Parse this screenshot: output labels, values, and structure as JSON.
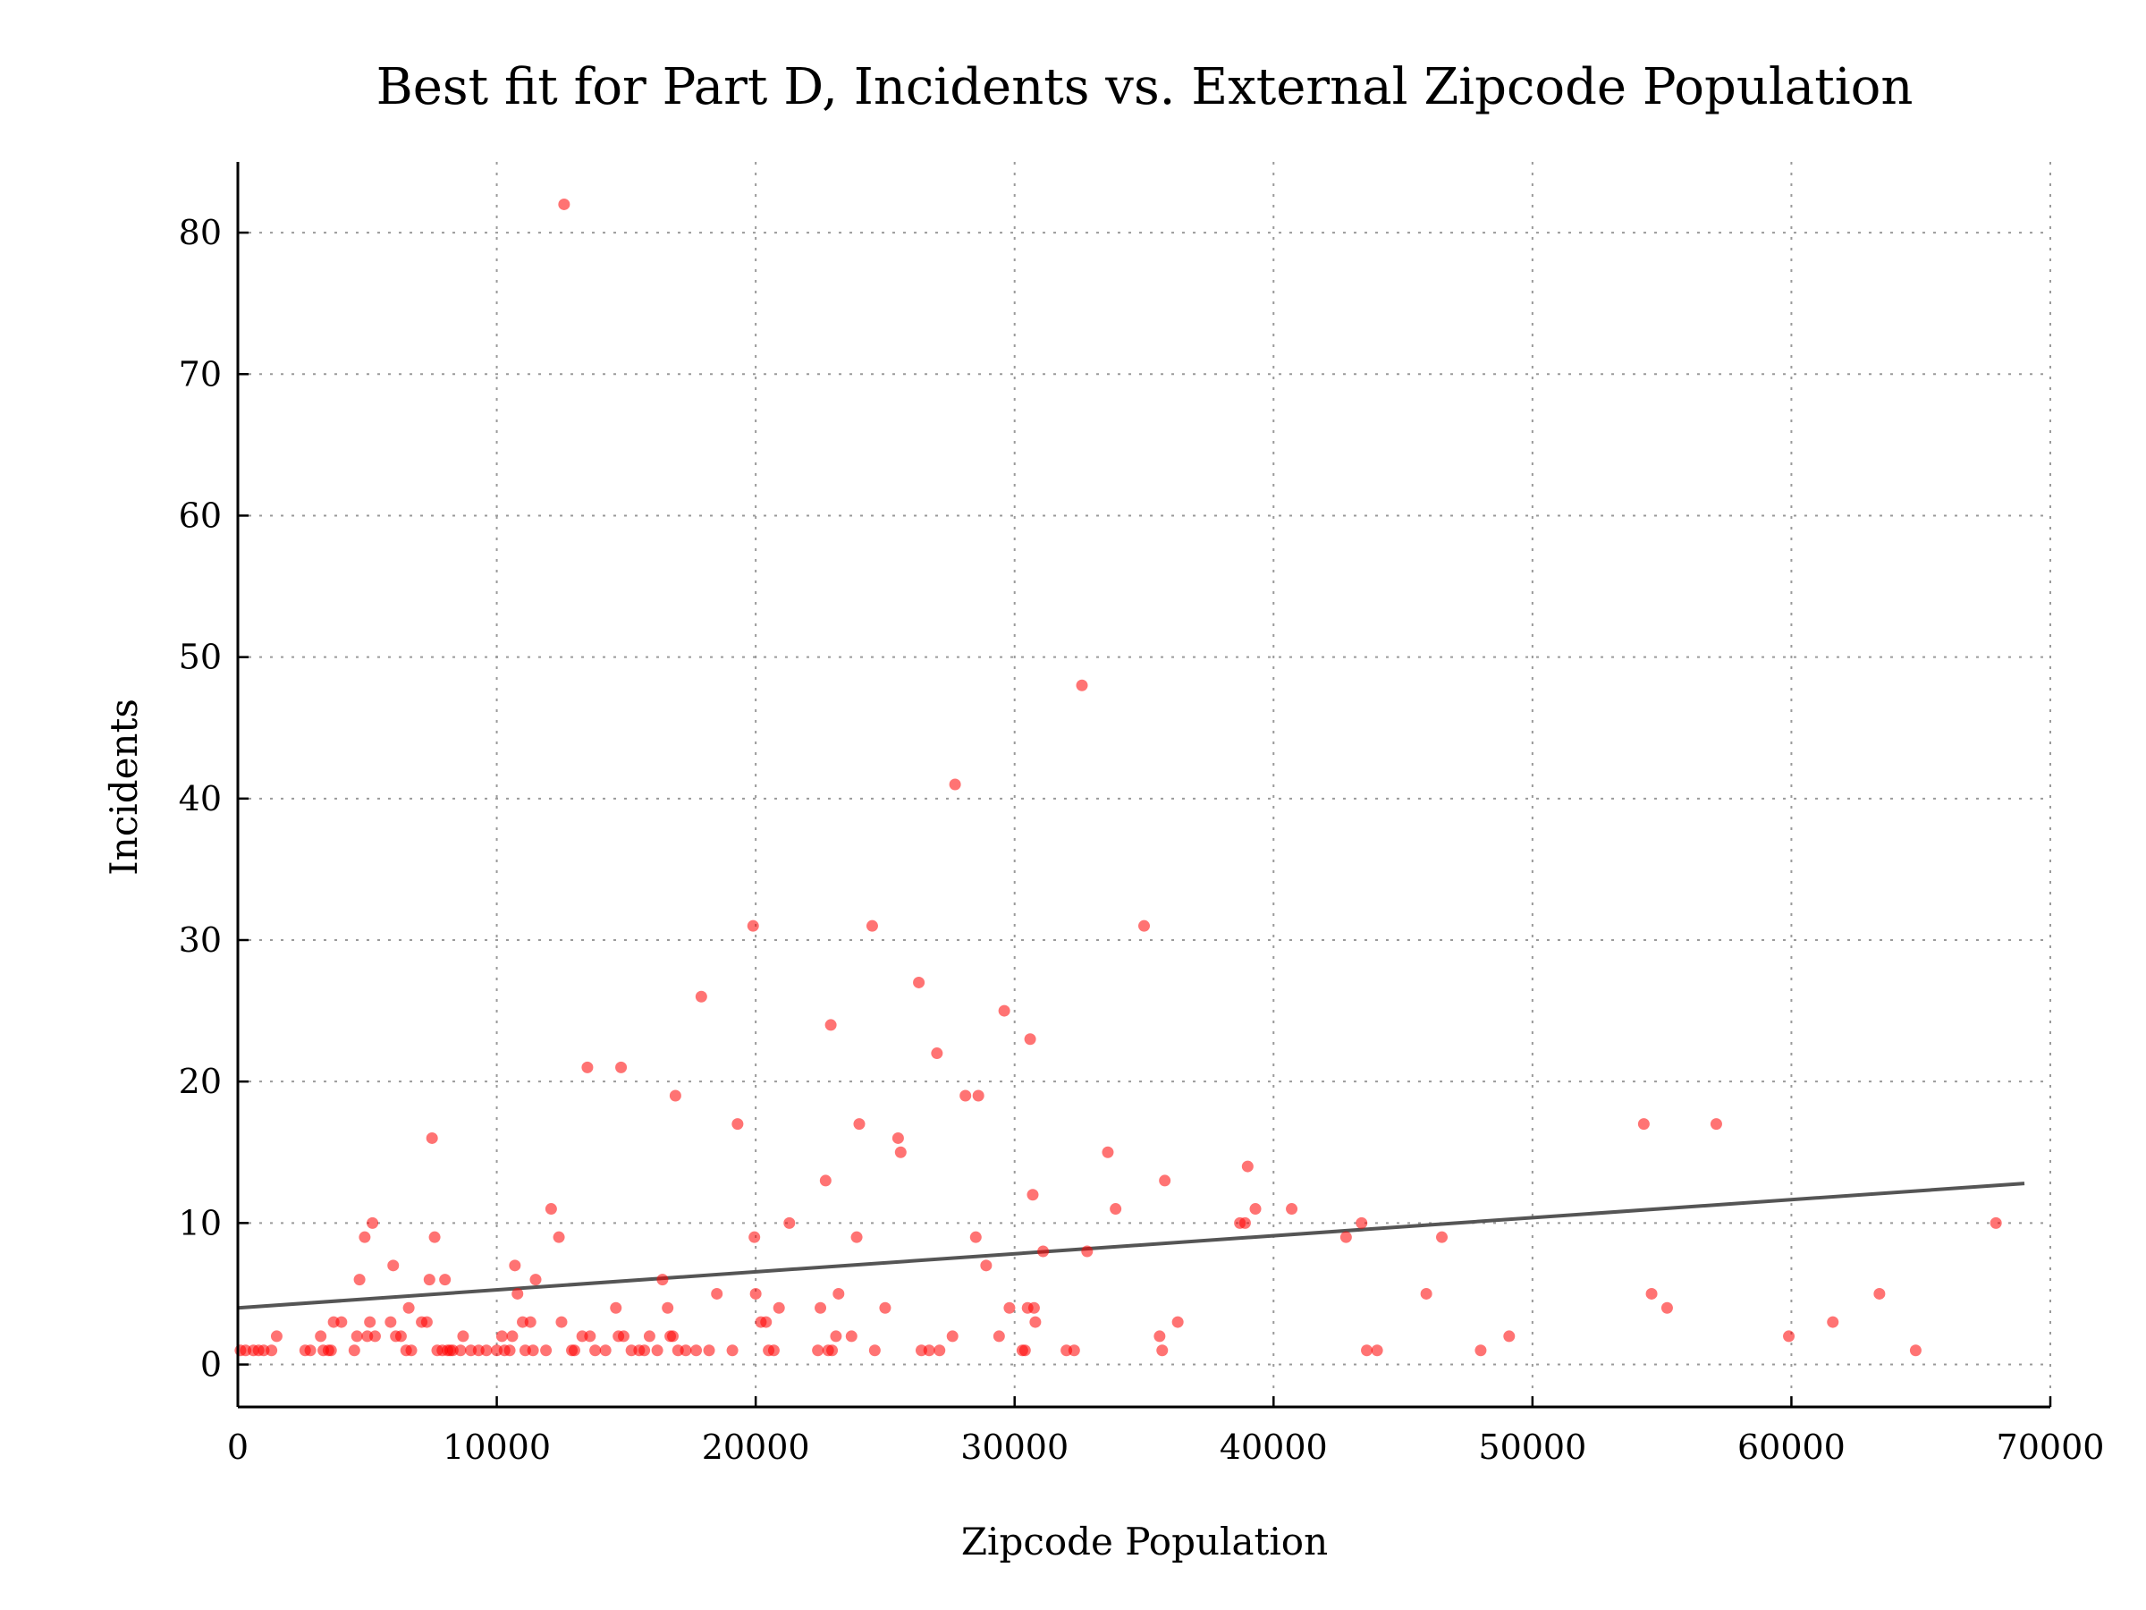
{
  "chart_data": {
    "type": "scatter",
    "title": "Best fit for Part D, Incidents vs. External Zipcode Population",
    "xlabel": "Zipcode Population",
    "ylabel": "Incidents",
    "xlim": [
      0,
      70000
    ],
    "ylim": [
      -3,
      85
    ],
    "xticks": [
      0,
      10000,
      20000,
      30000,
      40000,
      50000,
      60000,
      70000
    ],
    "yticks": [
      0,
      10,
      20,
      30,
      40,
      50,
      60,
      70,
      80
    ],
    "grid": true,
    "point_color": "#ff0000",
    "line_color": "#555555",
    "fit_line": {
      "x": [
        0,
        69000
      ],
      "y": [
        4.0,
        12.8
      ]
    },
    "points": [
      [
        100,
        1
      ],
      [
        300,
        1
      ],
      [
        600,
        1
      ],
      [
        800,
        1
      ],
      [
        1000,
        1
      ],
      [
        1300,
        1
      ],
      [
        1500,
        2
      ],
      [
        2600,
        1
      ],
      [
        2800,
        1
      ],
      [
        3200,
        2
      ],
      [
        3300,
        1
      ],
      [
        3500,
        1
      ],
      [
        3600,
        1
      ],
      [
        3700,
        3
      ],
      [
        4000,
        3
      ],
      [
        4500,
        1
      ],
      [
        4600,
        2
      ],
      [
        4700,
        6
      ],
      [
        4900,
        9
      ],
      [
        5000,
        2
      ],
      [
        5100,
        3
      ],
      [
        5200,
        10
      ],
      [
        5300,
        2
      ],
      [
        5900,
        3
      ],
      [
        6000,
        7
      ],
      [
        6100,
        2
      ],
      [
        6300,
        2
      ],
      [
        6500,
        1
      ],
      [
        6600,
        4
      ],
      [
        6700,
        1
      ],
      [
        7100,
        3
      ],
      [
        7300,
        3
      ],
      [
        7400,
        6
      ],
      [
        7500,
        16
      ],
      [
        7600,
        9
      ],
      [
        7700,
        1
      ],
      [
        7900,
        1
      ],
      [
        8000,
        6
      ],
      [
        8100,
        1
      ],
      [
        8200,
        1
      ],
      [
        8300,
        1
      ],
      [
        8600,
        1
      ],
      [
        8700,
        2
      ],
      [
        9000,
        1
      ],
      [
        9300,
        1
      ],
      [
        9600,
        1
      ],
      [
        10000,
        1
      ],
      [
        10200,
        2
      ],
      [
        10300,
        1
      ],
      [
        10500,
        1
      ],
      [
        10600,
        2
      ],
      [
        10700,
        7
      ],
      [
        10800,
        5
      ],
      [
        11000,
        3
      ],
      [
        11100,
        1
      ],
      [
        11300,
        3
      ],
      [
        11400,
        1
      ],
      [
        11500,
        6
      ],
      [
        11900,
        1
      ],
      [
        12100,
        11
      ],
      [
        12400,
        9
      ],
      [
        12500,
        3
      ],
      [
        12600,
        82
      ],
      [
        12900,
        1
      ],
      [
        13000,
        1
      ],
      [
        13300,
        2
      ],
      [
        13500,
        21
      ],
      [
        13600,
        2
      ],
      [
        13800,
        1
      ],
      [
        14200,
        1
      ],
      [
        14600,
        4
      ],
      [
        14700,
        2
      ],
      [
        14800,
        21
      ],
      [
        14900,
        2
      ],
      [
        15200,
        1
      ],
      [
        15500,
        1
      ],
      [
        15700,
        1
      ],
      [
        15900,
        2
      ],
      [
        16200,
        1
      ],
      [
        16400,
        6
      ],
      [
        16600,
        4
      ],
      [
        16700,
        2
      ],
      [
        16800,
        2
      ],
      [
        16900,
        19
      ],
      [
        17000,
        1
      ],
      [
        17300,
        1
      ],
      [
        17700,
        1
      ],
      [
        17900,
        26
      ],
      [
        18200,
        1
      ],
      [
        18500,
        5
      ],
      [
        19100,
        1
      ],
      [
        19300,
        17
      ],
      [
        19900,
        31
      ],
      [
        19950,
        9
      ],
      [
        20000,
        5
      ],
      [
        20200,
        3
      ],
      [
        20400,
        3
      ],
      [
        20500,
        1
      ],
      [
        20700,
        1
      ],
      [
        20900,
        4
      ],
      [
        21300,
        10
      ],
      [
        22400,
        1
      ],
      [
        22500,
        4
      ],
      [
        22700,
        13
      ],
      [
        22800,
        1
      ],
      [
        22900,
        24
      ],
      [
        22950,
        1
      ],
      [
        23100,
        2
      ],
      [
        23200,
        5
      ],
      [
        23700,
        2
      ],
      [
        23900,
        9
      ],
      [
        24000,
        17
      ],
      [
        24500,
        31
      ],
      [
        24600,
        1
      ],
      [
        25000,
        4
      ],
      [
        25500,
        16
      ],
      [
        25600,
        15
      ],
      [
        26300,
        27
      ],
      [
        26400,
        1
      ],
      [
        26700,
        1
      ],
      [
        27000,
        22
      ],
      [
        27100,
        1
      ],
      [
        27600,
        2
      ],
      [
        27700,
        41
      ],
      [
        28100,
        19
      ],
      [
        28500,
        9
      ],
      [
        28600,
        19
      ],
      [
        28900,
        7
      ],
      [
        29400,
        2
      ],
      [
        29600,
        25
      ],
      [
        29800,
        4
      ],
      [
        30300,
        1
      ],
      [
        30400,
        1
      ],
      [
        30500,
        4
      ],
      [
        30600,
        23
      ],
      [
        30700,
        12
      ],
      [
        30750,
        4
      ],
      [
        30800,
        3
      ],
      [
        31100,
        8
      ],
      [
        32000,
        1
      ],
      [
        32300,
        1
      ],
      [
        32600,
        48
      ],
      [
        32800,
        8
      ],
      [
        33600,
        15
      ],
      [
        33900,
        11
      ],
      [
        35000,
        31
      ],
      [
        35600,
        2
      ],
      [
        35700,
        1
      ],
      [
        35800,
        13
      ],
      [
        36300,
        3
      ],
      [
        38700,
        10
      ],
      [
        38900,
        10
      ],
      [
        39000,
        14
      ],
      [
        39300,
        11
      ],
      [
        40700,
        11
      ],
      [
        42800,
        9
      ],
      [
        43400,
        10
      ],
      [
        43600,
        1
      ],
      [
        44000,
        1
      ],
      [
        45900,
        5
      ],
      [
        46500,
        9
      ],
      [
        48000,
        1
      ],
      [
        49100,
        2
      ],
      [
        54300,
        17
      ],
      [
        54600,
        5
      ],
      [
        55200,
        4
      ],
      [
        57100,
        17
      ],
      [
        59900,
        2
      ],
      [
        61600,
        3
      ],
      [
        63400,
        5
      ],
      [
        64800,
        1
      ],
      [
        67900,
        10
      ]
    ]
  }
}
